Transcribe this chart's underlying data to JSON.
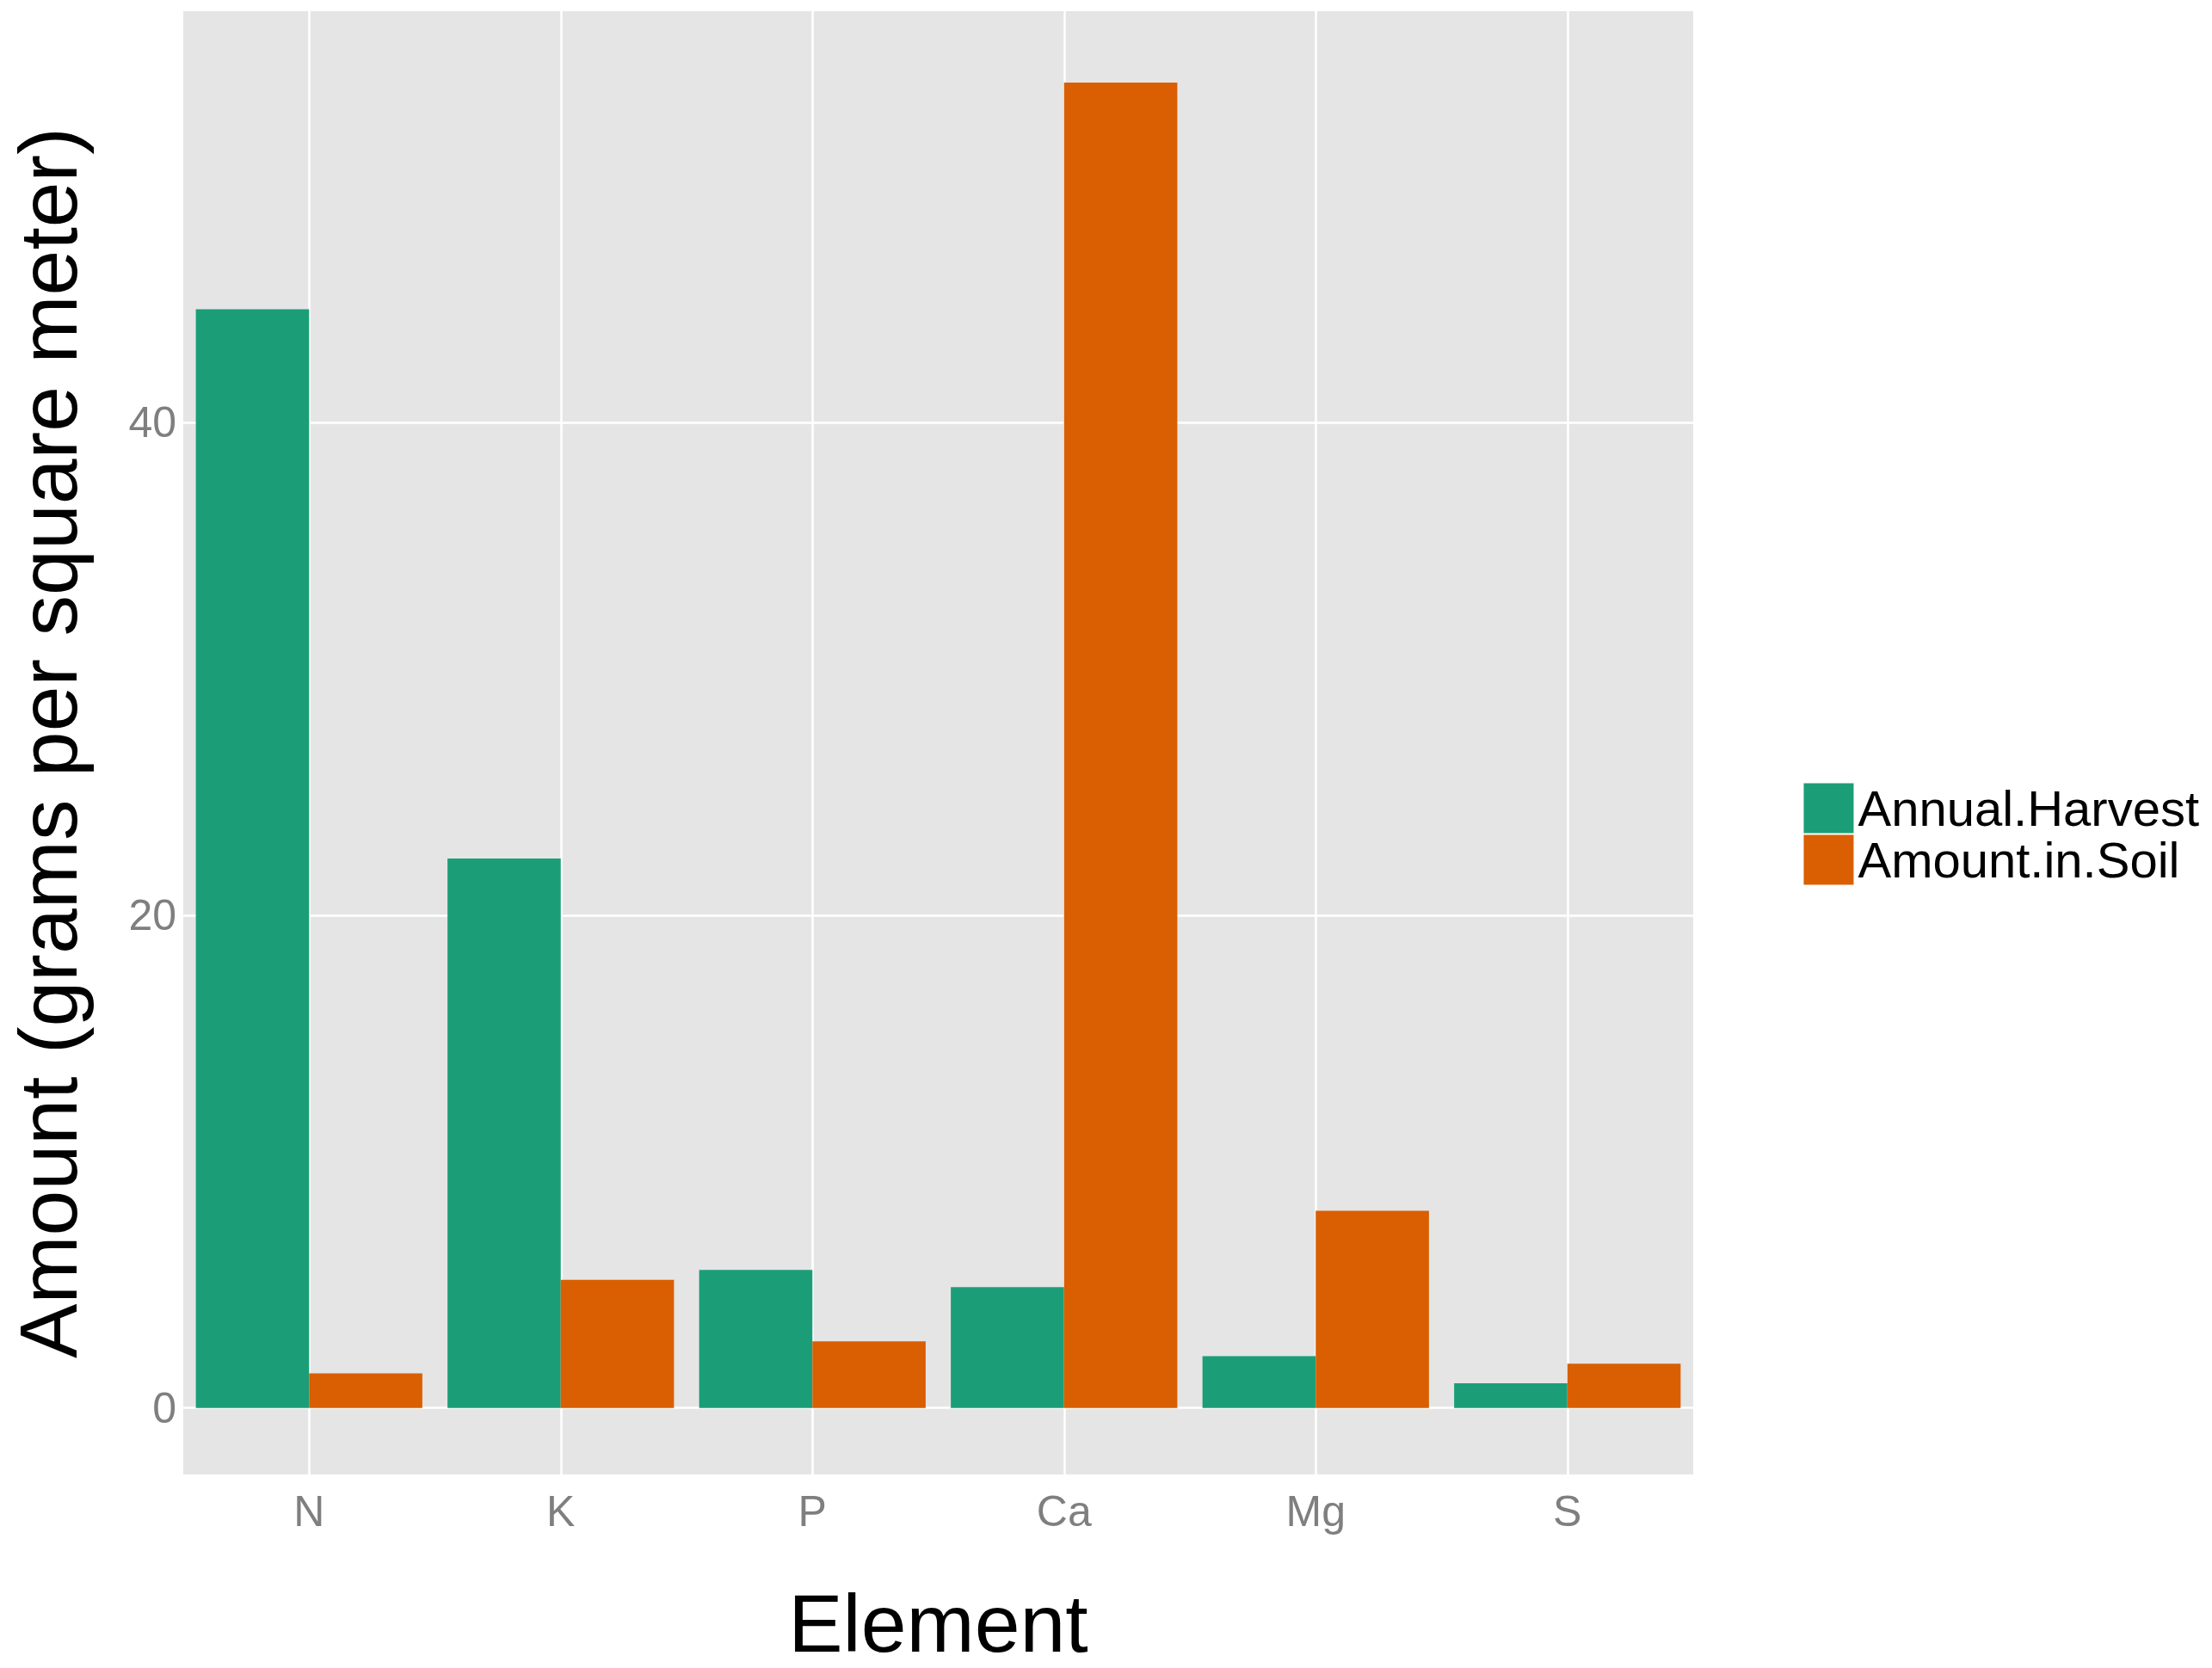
{
  "chart_data": {
    "type": "bar",
    "xlabel": "Element",
    "ylabel": "Amount (grams per square meter)",
    "categories": [
      "N",
      "K",
      "P",
      "Ca",
      "Mg",
      "S"
    ],
    "series": [
      {
        "name": "Annual.Harvest",
        "color": "#1b9e77",
        "values": [
          44.6,
          22.3,
          5.6,
          4.9,
          2.1,
          1.0
        ]
      },
      {
        "name": "Amount.in.Soil",
        "color": "#d95f02",
        "values": [
          1.4,
          5.2,
          2.7,
          53.8,
          8.0,
          1.8
        ]
      }
    ],
    "ylim": [
      -2.7,
      56.7
    ],
    "yticks": [
      0,
      20,
      40
    ],
    "grid": true,
    "legend": "right"
  }
}
